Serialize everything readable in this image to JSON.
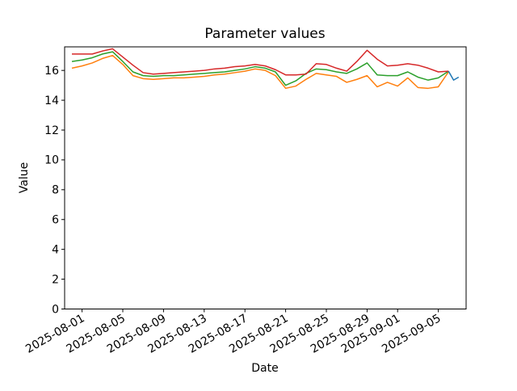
{
  "figure": {
    "background": "#ffffff",
    "text_color": "#000000",
    "axis_color": "#000000"
  },
  "chart_data": {
    "type": "line",
    "title": "Parameter values",
    "xlabel": "Date",
    "ylabel": "Value",
    "ylim": [
      0,
      17.58
    ],
    "grid": false,
    "legend": "none",
    "x_start_date": "2025-07-31",
    "x_unit": "days since 2025-07-31",
    "y_ticks": [
      0,
      2,
      4,
      6,
      8,
      10,
      12,
      14,
      16
    ],
    "x_ticks": [
      {
        "day": 1,
        "label": "2025-08-01"
      },
      {
        "day": 5,
        "label": "2025-08-05"
      },
      {
        "day": 9,
        "label": "2025-08-09"
      },
      {
        "day": 13,
        "label": "2025-08-13"
      },
      {
        "day": 17,
        "label": "2025-08-17"
      },
      {
        "day": 21,
        "label": "2025-08-21"
      },
      {
        "day": 25,
        "label": "2025-08-25"
      },
      {
        "day": 29,
        "label": "2025-08-29"
      },
      {
        "day": 32,
        "label": "2025-09-01"
      },
      {
        "day": 36,
        "label": "2025-09-05"
      }
    ],
    "series": [
      {
        "name": "series-orange",
        "color": "#ff7f0e",
        "start_day": 0,
        "values": [
          16.15,
          16.3,
          16.5,
          16.8,
          17.0,
          16.4,
          15.65,
          15.45,
          15.4,
          15.45,
          15.5,
          15.5,
          15.55,
          15.6,
          15.7,
          15.75,
          15.85,
          15.95,
          16.1,
          16.0,
          15.65,
          14.8,
          14.95,
          15.4,
          15.8,
          15.7,
          15.6,
          15.2,
          15.4,
          15.65,
          14.9,
          15.2,
          14.95,
          15.5,
          14.85,
          14.8,
          14.9,
          15.9
        ]
      },
      {
        "name": "series-green",
        "color": "#2ca02c",
        "start_day": 0,
        "values": [
          16.6,
          16.7,
          16.85,
          17.1,
          17.25,
          16.6,
          15.9,
          15.65,
          15.6,
          15.65,
          15.65,
          15.7,
          15.75,
          15.8,
          15.85,
          15.9,
          16.0,
          16.1,
          16.25,
          16.15,
          15.9,
          15.0,
          15.3,
          15.8,
          16.1,
          16.05,
          15.9,
          15.8,
          16.1,
          16.5,
          15.7,
          15.65,
          15.65,
          15.9,
          15.55,
          15.35,
          15.5,
          15.95
        ]
      },
      {
        "name": "series-red",
        "color": "#d62728",
        "start_day": 0,
        "values": [
          17.1,
          17.1,
          17.1,
          17.3,
          17.45,
          16.9,
          16.35,
          15.85,
          15.75,
          15.8,
          15.85,
          15.9,
          15.95,
          16.0,
          16.1,
          16.15,
          16.25,
          16.3,
          16.4,
          16.3,
          16.05,
          15.7,
          15.7,
          15.75,
          16.45,
          16.4,
          16.15,
          15.95,
          16.6,
          17.35,
          16.75,
          16.3,
          16.35,
          16.45,
          16.35,
          16.15,
          15.9,
          15.95
        ]
      },
      {
        "name": "series-blue",
        "color": "#1f77b4",
        "days": [
          37,
          37.5,
          38
        ],
        "values": [
          15.95,
          15.35,
          15.55
        ]
      }
    ]
  }
}
